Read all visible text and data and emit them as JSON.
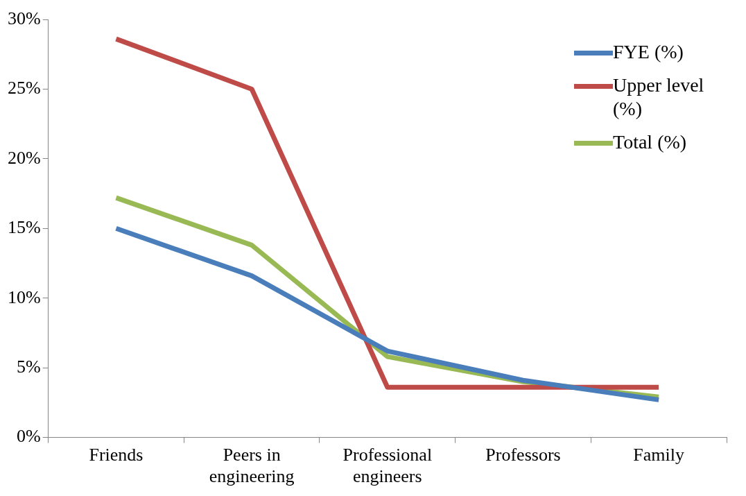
{
  "chart_data": {
    "type": "line",
    "categories": [
      "Friends",
      "Peers in engineering",
      "Professional engineers",
      "Professors",
      "Family"
    ],
    "series": [
      {
        "name": "FYE (%)",
        "color": "#4a7ebb",
        "values": [
          15.0,
          11.6,
          6.2,
          4.1,
          2.7
        ]
      },
      {
        "name": "Upper level (%)",
        "color": "#be4b48",
        "values": [
          28.6,
          25.0,
          3.6,
          3.6,
          3.6
        ]
      },
      {
        "name": "Total (%)",
        "color": "#98b954",
        "values": [
          17.2,
          13.8,
          5.8,
          4.0,
          2.9
        ]
      }
    ],
    "ylim": [
      0,
      30
    ],
    "yticks": [
      {
        "value": 0,
        "label": "0%"
      },
      {
        "value": 5,
        "label": "5%"
      },
      {
        "value": 10,
        "label": "10%"
      },
      {
        "value": 15,
        "label": "15%"
      },
      {
        "value": 20,
        "label": "20%"
      },
      {
        "value": 25,
        "label": "25%"
      },
      {
        "value": 30,
        "label": "30%"
      }
    ],
    "grid": false,
    "legend": "top right",
    "marker": "none",
    "line_style": "solid"
  }
}
